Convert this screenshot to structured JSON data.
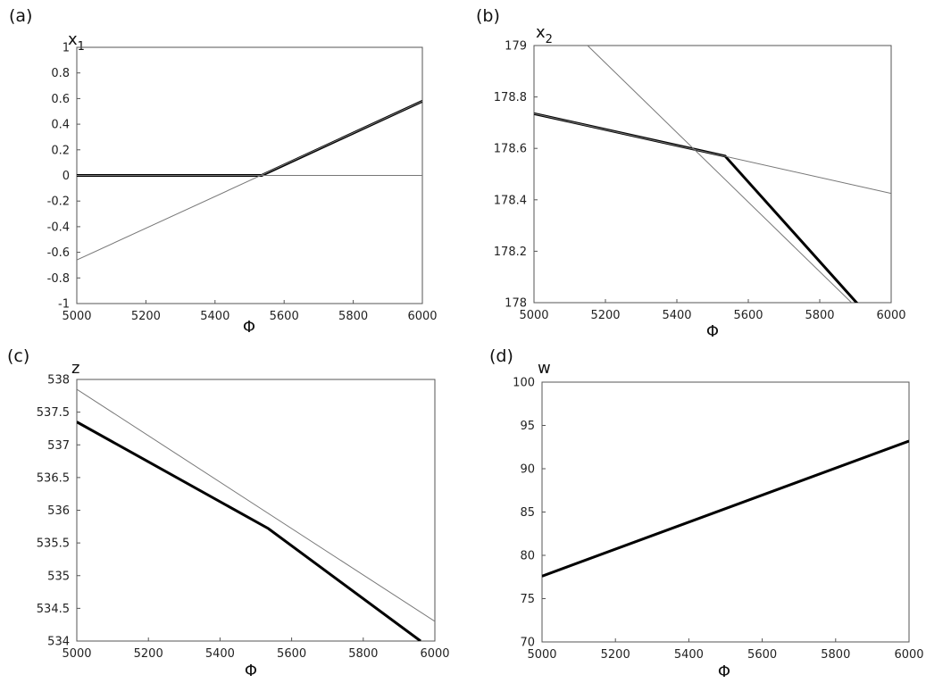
{
  "chart_data": [
    {
      "panel": "(a)",
      "type": "line",
      "ylabel": "x",
      "ylabel_sub": "1",
      "xlabel": "Φ",
      "xlim": [
        5000,
        6000
      ],
      "ylim": [
        -1,
        1
      ],
      "xticks": [
        "5000",
        "5200",
        "5400",
        "5600",
        "5800",
        "6000"
      ],
      "yticks": [
        "-1",
        "-0.8",
        "-0.6",
        "-0.4",
        "-0.2",
        "0",
        "0.2",
        "0.4",
        "0.6",
        "0.8",
        "1"
      ],
      "series": [
        {
          "style": "thick",
          "points": [
            [
              5000,
              0
            ],
            [
              5535,
              0
            ],
            [
              6000,
              0.58
            ]
          ]
        },
        {
          "style": "thin",
          "points": [
            [
              5000,
              -0.66
            ],
            [
              6000,
              0.58
            ]
          ]
        },
        {
          "style": "thin",
          "points": [
            [
              5000,
              0
            ],
            [
              6000,
              0
            ]
          ]
        }
      ]
    },
    {
      "panel": "(b)",
      "type": "line",
      "ylabel": "x",
      "ylabel_sub": "2",
      "xlabel": "Φ",
      "xlim": [
        5000,
        6000
      ],
      "ylim": [
        178,
        179
      ],
      "xticks": [
        "5000",
        "5200",
        "5400",
        "5600",
        "5800",
        "6000"
      ],
      "yticks": [
        "178",
        "178.2",
        "178.4",
        "178.6",
        "178.8",
        "179"
      ],
      "series": [
        {
          "style": "thick",
          "points": [
            [
              5000,
              178.735
            ],
            [
              5535,
              178.57
            ],
            [
              6000,
              177.85
            ]
          ]
        },
        {
          "style": "thin",
          "points": [
            [
              5000,
              178.735
            ],
            [
              6000,
              178.425
            ]
          ]
        },
        {
          "style": "thin",
          "points": [
            [
              5150,
              179.0
            ],
            [
              6000,
              177.85
            ]
          ]
        }
      ]
    },
    {
      "panel": "(c)",
      "type": "line",
      "ylabel": "z",
      "xlabel": "Φ",
      "xlim": [
        5000,
        6000
      ],
      "ylim": [
        534,
        538
      ],
      "xticks": [
        "5000",
        "5200",
        "5400",
        "5600",
        "5800",
        "6000"
      ],
      "yticks": [
        "534",
        "534.5",
        "535",
        "535.5",
        "536",
        "536.5",
        "537",
        "537.5",
        "538"
      ],
      "series": [
        {
          "style": "thick",
          "points": [
            [
              5000,
              537.35
            ],
            [
              5535,
              535.72
            ],
            [
              5960,
              534.0
            ]
          ]
        },
        {
          "style": "thin",
          "points": [
            [
              5000,
              537.85
            ],
            [
              6000,
              534.3
            ]
          ]
        }
      ]
    },
    {
      "panel": "(d)",
      "type": "line",
      "ylabel": "w",
      "xlabel": "Φ",
      "xlim": [
        5000,
        6000
      ],
      "ylim": [
        70,
        100
      ],
      "xticks": [
        "5000",
        "5200",
        "5400",
        "5600",
        "5800",
        "6000"
      ],
      "yticks": [
        "70",
        "75",
        "80",
        "85",
        "90",
        "95",
        "100"
      ],
      "series": [
        {
          "style": "thick",
          "points": [
            [
              5000,
              77.6
            ],
            [
              6000,
              93.2
            ]
          ]
        }
      ]
    }
  ]
}
